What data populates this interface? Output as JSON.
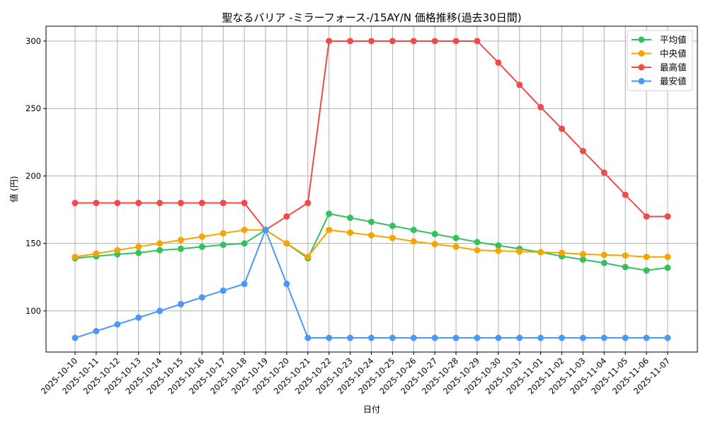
{
  "chart_data": {
    "type": "line",
    "title": "聖なるバリア -ミラーフォース-/15AY/N 価格推移(過去30日間)",
    "xlabel": "日付",
    "ylabel": "値 (円)",
    "ylim": [
      69.5,
      311
    ],
    "yticks": [
      100,
      150,
      200,
      250,
      300
    ],
    "grid": true,
    "legend_position": "upper right",
    "categories": [
      "2025-10-10",
      "2025-10-11",
      "2025-10-12",
      "2025-10-13",
      "2025-10-14",
      "2025-10-15",
      "2025-10-16",
      "2025-10-17",
      "2025-10-18",
      "2025-10-19",
      "2025-10-20",
      "2025-10-21",
      "2025-10-22",
      "2025-10-23",
      "2025-10-24",
      "2025-10-25",
      "2025-10-26",
      "2025-10-27",
      "2025-10-28",
      "2025-10-29",
      "2025-10-30",
      "2025-10-31",
      "2025-11-01",
      "2025-11-02",
      "2025-11-03",
      "2025-11-04",
      "2025-11-05",
      "2025-11-06",
      "2025-11-07"
    ],
    "series": [
      {
        "name": "平均値",
        "color": "#33c15f",
        "values": [
          139,
          140.5,
          142,
          143,
          145,
          146,
          147.5,
          149,
          150,
          160,
          150,
          139,
          172,
          169,
          166,
          163,
          160,
          157,
          154,
          151,
          148.5,
          146,
          143.5,
          140.5,
          138,
          135.5,
          132.5,
          130,
          132
        ]
      },
      {
        "name": "中央値",
        "color": "#f5a500",
        "values": [
          140,
          142.5,
          145,
          147.5,
          150,
          152.5,
          155,
          157.5,
          160,
          160,
          150,
          140,
          160,
          158,
          156,
          154,
          151.5,
          149.5,
          147.5,
          145,
          144.5,
          144,
          143.5,
          143,
          142,
          141.5,
          141,
          140,
          140
        ]
      },
      {
        "name": "最高値",
        "color": "#f04a4a",
        "values": [
          180,
          180,
          180,
          180,
          180,
          180,
          180,
          180,
          180,
          160,
          170,
          180,
          300,
          300,
          300,
          300,
          300,
          300,
          300,
          300,
          284,
          267.5,
          251,
          235,
          218.5,
          202.5,
          186,
          170,
          170
        ]
      },
      {
        "name": "最安値",
        "color": "#4a98f5",
        "values": [
          80,
          85,
          90,
          95,
          100,
          105,
          110,
          115,
          120,
          160,
          120,
          80,
          80,
          80,
          80,
          80,
          80,
          80,
          80,
          80,
          80,
          80,
          80,
          80,
          80,
          80,
          80,
          80,
          80
        ]
      }
    ]
  }
}
